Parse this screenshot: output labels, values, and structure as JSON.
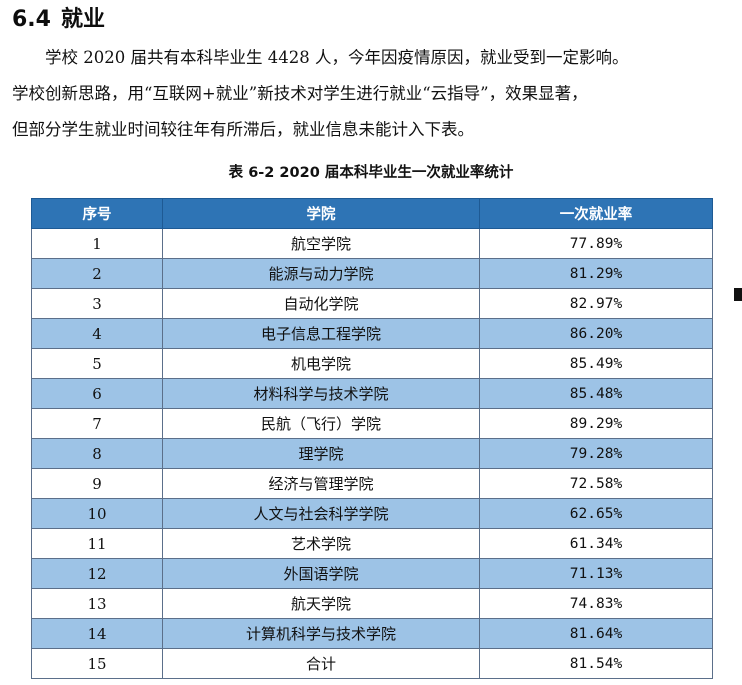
{
  "heading": {
    "number": "6.4",
    "title": "就业"
  },
  "paragraph": [
    "学校 2020 届共有本科毕业生 4428 人，今年因疫情原因，就业受到一定影响。",
    "学校创新思路，用“互联网+就业”新技术对学生进行就业“云指导”，效果显著，",
    "但部分学生就业时间较往年有所滞后，就业信息未能计入下表。"
  ],
  "table": {
    "caption": "表 6-2  2020 届本科毕业生一次就业率统计",
    "headers": [
      "序号",
      "学院",
      "一次就业率"
    ],
    "header_color": "#2e74b5",
    "stripe_color": "#9dc3e6",
    "rows": [
      [
        "1",
        "航空学院",
        "77.89%"
      ],
      [
        "2",
        "能源与动力学院",
        "81.29%"
      ],
      [
        "3",
        "自动化学院",
        "82.97%"
      ],
      [
        "4",
        "电子信息工程学院",
        "86.20%"
      ],
      [
        "5",
        "机电学院",
        "85.49%"
      ],
      [
        "6",
        "材料科学与技术学院",
        "85.48%"
      ],
      [
        "7",
        "民航（飞行）学院",
        "89.29%"
      ],
      [
        "8",
        "理学院",
        "79.28%"
      ],
      [
        "9",
        "经济与管理学院",
        "72.58%"
      ],
      [
        "10",
        "人文与社会科学学院",
        "62.65%"
      ],
      [
        "11",
        "艺术学院",
        "61.34%"
      ],
      [
        "12",
        "外国语学院",
        "71.13%"
      ],
      [
        "13",
        "航天学院",
        "74.83%"
      ],
      [
        "14",
        "计算机科学与技术学院",
        "81.64%"
      ],
      [
        "15",
        "合计",
        "81.54%"
      ]
    ]
  }
}
